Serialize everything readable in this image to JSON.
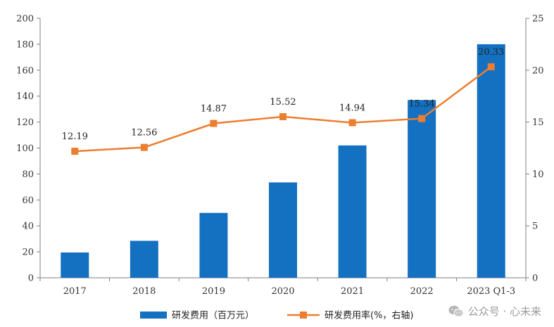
{
  "chart_data": {
    "type": "bar+line",
    "categories": [
      "2017",
      "2018",
      "2019",
      "2020",
      "2021",
      "2022",
      "2023 Q1-3"
    ],
    "series": [
      {
        "name": "研发费用（百万元）",
        "type": "bar",
        "axis": "left",
        "color": "#1470c0",
        "values": [
          19.5,
          28.5,
          50,
          73.5,
          102,
          137,
          180
        ]
      },
      {
        "name": "研发费用率(%，右轴)",
        "type": "line",
        "axis": "right",
        "color": "#ed7d31",
        "values": [
          12.19,
          12.56,
          14.87,
          15.52,
          14.94,
          15.34,
          20.33
        ],
        "labels": [
          "12.19",
          "12.56",
          "14.87",
          "15.52",
          "14.94",
          "15.34",
          "20.33"
        ]
      }
    ],
    "y_left": {
      "min": 0,
      "max": 200,
      "ticks": [
        "0",
        "20",
        "40",
        "60",
        "80",
        "100",
        "120",
        "140",
        "160",
        "180",
        "200"
      ]
    },
    "y_right": {
      "min": 0,
      "max": 25,
      "ticks": [
        "0",
        "5",
        "10",
        "15",
        "20",
        "25"
      ]
    },
    "grid": false,
    "legend_position": "bottom"
  },
  "watermark": {
    "text": "公众号 · 心未来",
    "icon": "wechat-icon"
  }
}
